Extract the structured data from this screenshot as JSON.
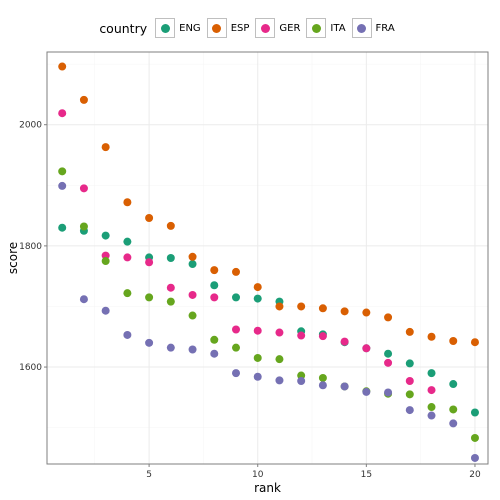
{
  "chart_data": {
    "type": "scatter",
    "xlabel": "rank",
    "ylabel": "score",
    "xlim": [
      0.3,
      20.6
    ],
    "ylim": [
      1440,
      2120
    ],
    "xticks": [
      5,
      10,
      15,
      20
    ],
    "yticks": [
      1600,
      1800,
      2000
    ],
    "grid": true,
    "legend_title": "country",
    "legend_position": "top",
    "series": [
      {
        "name": "ENG",
        "color": "#1b9e77",
        "x": [
          1,
          2,
          3,
          4,
          5,
          6,
          7,
          8,
          9,
          10,
          11,
          12,
          13,
          14,
          15,
          16,
          17,
          18,
          19,
          20
        ],
        "y": [
          1830,
          1825,
          1817,
          1807,
          1781,
          1780,
          1770,
          1735,
          1715,
          1713,
          1708,
          1659,
          1654,
          1641,
          1631,
          1622,
          1606,
          1590,
          1572,
          1525
        ]
      },
      {
        "name": "ESP",
        "color": "#d95f02",
        "x": [
          1,
          2,
          3,
          4,
          5,
          6,
          7,
          8,
          9,
          10,
          11,
          12,
          13,
          14,
          15,
          16,
          17,
          18,
          19,
          20
        ],
        "y": [
          2096,
          2041,
          1963,
          1872,
          1846,
          1833,
          1782,
          1760,
          1757,
          1732,
          1700,
          1700,
          1697,
          1692,
          1690,
          1682,
          1658,
          1650,
          1643,
          1641
        ]
      },
      {
        "name": "GER",
        "color": "#e7298a",
        "x": [
          1,
          2,
          3,
          4,
          5,
          6,
          7,
          8,
          9,
          10,
          11,
          12,
          13,
          14,
          15,
          16,
          17,
          18
        ],
        "y": [
          2019,
          1895,
          1784,
          1781,
          1773,
          1731,
          1719,
          1715,
          1662,
          1660,
          1657,
          1652,
          1651,
          1642,
          1631,
          1607,
          1577,
          1562
        ]
      },
      {
        "name": "ITA",
        "color": "#66a61e",
        "x": [
          1,
          2,
          3,
          4,
          5,
          6,
          7,
          8,
          9,
          10,
          11,
          12,
          13,
          14,
          15,
          16,
          17,
          18,
          19,
          20
        ],
        "y": [
          1923,
          1832,
          1775,
          1722,
          1715,
          1708,
          1685,
          1645,
          1632,
          1615,
          1613,
          1586,
          1582,
          1568,
          1560,
          1556,
          1555,
          1534,
          1530,
          1483
        ]
      },
      {
        "name": "FRA",
        "color": "#7570b3",
        "x": [
          1,
          2,
          3,
          4,
          5,
          6,
          7,
          8,
          9,
          10,
          11,
          12,
          13,
          14,
          15,
          16,
          17,
          18,
          19,
          20
        ],
        "y": [
          1899,
          1712,
          1693,
          1653,
          1640,
          1632,
          1629,
          1622,
          1590,
          1584,
          1578,
          1577,
          1570,
          1568,
          1559,
          1558,
          1529,
          1520,
          1507,
          1450
        ]
      }
    ]
  }
}
